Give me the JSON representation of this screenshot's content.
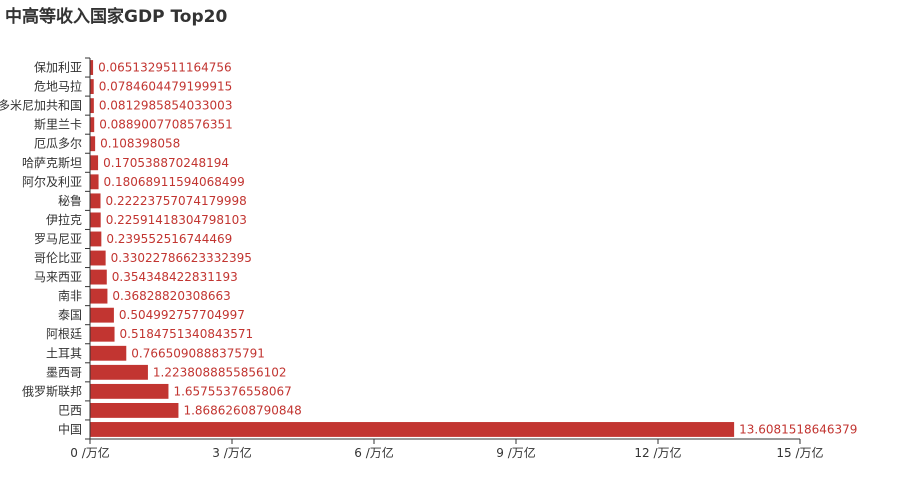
{
  "chart_data": {
    "type": "bar",
    "orientation": "horizontal",
    "title": "中高等收入国家GDP Top20",
    "categories": [
      "中国",
      "巴西",
      "俄罗斯联邦",
      "墨西哥",
      "土耳其",
      "阿根廷",
      "泰国",
      "南非",
      "马来西亚",
      "哥伦比亚",
      "罗马尼亚",
      "伊拉克",
      "秘鲁",
      "阿尔及利亚",
      "哈萨克斯坦",
      "厄瓜多尔",
      "斯里兰卡",
      "多米尼加共和国",
      "危地马拉",
      "保加利亚"
    ],
    "values": [
      13.6081518646379,
      1.86862608790848,
      1.65755376558067,
      1.2238088855856102,
      0.7665090888375791,
      0.5184751340843571,
      0.504992757704997,
      0.36828820308663,
      0.354348422831193,
      0.33022786623332395,
      0.239552516744469,
      0.22591418304798103,
      0.22223757074179998,
      0.18068911594068499,
      0.170538870248194,
      0.108398058,
      0.0889007708576351,
      0.0812985854033003,
      0.0784604479199915,
      0.0651329511164756
    ],
    "labels": [
      "13.6081518646379",
      "1.86862608790848",
      "1.65755376558067",
      "1.2238088855856102",
      "0.7665090888375791",
      "0.5184751340843571",
      "0.504992757704997",
      "0.36828820308663",
      "0.354348422831193",
      "0.33022786623332395",
      "0.239552516744469",
      "0.22591418304798103",
      "0.22223757074179998",
      "0.18068911594068499",
      "0.170538870248194",
      "0.108398058",
      "0.0889007708576351",
      "0.0812985854033003",
      "0.0784604479199915",
      "0.0651329511164756"
    ],
    "xlim": [
      0,
      15
    ],
    "x_ticks": [
      0,
      3,
      6,
      9,
      12,
      15
    ],
    "x_tick_labels": [
      "0 /万亿",
      "3 /万亿",
      "6 /万亿",
      "9 /万亿",
      "12 /万亿",
      "15 /万亿"
    ],
    "xlabel": "",
    "ylabel": "",
    "grid": false,
    "legend": "none",
    "colors": {
      "bar": "#c23531",
      "label": "#c23531",
      "axis": "#333333",
      "title": "#333333"
    }
  }
}
